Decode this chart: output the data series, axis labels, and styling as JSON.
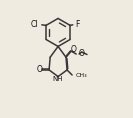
{
  "background_color": "#f0ebe0",
  "line_color": "#383838",
  "line_width": 1.1,
  "text_color": "#111111",
  "fig_width": 1.33,
  "fig_height": 1.18,
  "dpi": 100,
  "xlim": [
    0,
    10
  ],
  "ylim": [
    0,
    9
  ]
}
